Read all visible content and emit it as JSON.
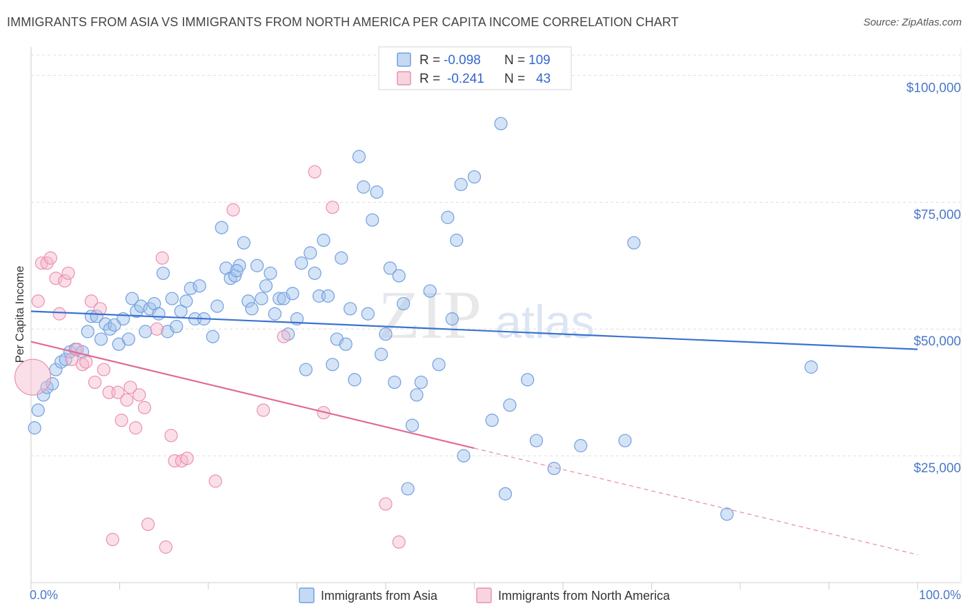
{
  "header": {
    "title": "IMMIGRANTS FROM ASIA VS IMMIGRANTS FROM NORTH AMERICA PER CAPITA INCOME CORRELATION CHART",
    "source": "Source: ZipAtlas.com"
  },
  "watermark": {
    "zip": "ZIP",
    "atlas": "atlas"
  },
  "legend": {
    "r_label": "R =",
    "n_label": "N =",
    "rows": [
      {
        "r": "-0.098",
        "n": "109",
        "color": "#6f9fe0"
      },
      {
        "r": "-0.241",
        "n": "43",
        "color": "#eb8fae"
      }
    ]
  },
  "chart_data": {
    "type": "scatter",
    "title": "IMMIGRANTS FROM ASIA VS IMMIGRANTS FROM NORTH AMERICA PER CAPITA INCOME CORRELATION CHART",
    "xlabel": "",
    "ylabel": "Per Capita Income",
    "xlim": [
      0,
      100
    ],
    "ylim": [
      0,
      104000
    ],
    "x_tick_labels": [
      "0.0%",
      "100.0%"
    ],
    "y_ticks": [
      25000,
      50000,
      75000,
      100000
    ],
    "y_tick_labels": [
      "$25,000",
      "$50,000",
      "$75,000",
      "$100,000"
    ],
    "grid": true,
    "series": [
      {
        "name": "Immigrants from Asia",
        "color": "#6f9fe0",
        "fill": "rgba(160,192,236,0.45)",
        "trend": {
          "x0": 0,
          "y0": 53500,
          "x1": 100,
          "y1": 46000,
          "solid_until": 100
        },
        "points": [
          [
            0.4,
            30500
          ],
          [
            0.8,
            34000
          ],
          [
            1.4,
            37000
          ],
          [
            1.8,
            38500
          ],
          [
            2.4,
            39200
          ],
          [
            2.8,
            42000
          ],
          [
            3.4,
            43500
          ],
          [
            3.9,
            44000
          ],
          [
            4.4,
            45500
          ],
          [
            5.0,
            46000
          ],
          [
            5.8,
            45500
          ],
          [
            6.4,
            49500
          ],
          [
            6.8,
            52500
          ],
          [
            7.4,
            52500
          ],
          [
            7.9,
            48000
          ],
          [
            8.4,
            51000
          ],
          [
            8.9,
            50000
          ],
          [
            9.4,
            50800
          ],
          [
            9.9,
            47000
          ],
          [
            10.4,
            52000
          ],
          [
            11.0,
            48000
          ],
          [
            11.4,
            56000
          ],
          [
            11.9,
            53500
          ],
          [
            12.4,
            54500
          ],
          [
            12.9,
            49500
          ],
          [
            13.4,
            54000
          ],
          [
            13.9,
            55000
          ],
          [
            14.4,
            53000
          ],
          [
            14.9,
            61000
          ],
          [
            15.4,
            49500
          ],
          [
            15.9,
            56000
          ],
          [
            16.4,
            50500
          ],
          [
            16.9,
            53500
          ],
          [
            17.5,
            55500
          ],
          [
            18.0,
            58000
          ],
          [
            18.5,
            52000
          ],
          [
            19.0,
            58500
          ],
          [
            19.5,
            52000
          ],
          [
            20.5,
            48500
          ],
          [
            21.0,
            54500
          ],
          [
            21.5,
            70000
          ],
          [
            22.0,
            62000
          ],
          [
            22.5,
            60000
          ],
          [
            23.0,
            60500
          ],
          [
            23.5,
            62500
          ],
          [
            24.0,
            67000
          ],
          [
            24.5,
            55500
          ],
          [
            24.9,
            54000
          ],
          [
            25.5,
            62500
          ],
          [
            26.0,
            56000
          ],
          [
            26.5,
            58500
          ],
          [
            27.0,
            61000
          ],
          [
            27.5,
            53000
          ],
          [
            28.0,
            56000
          ],
          [
            28.5,
            56000
          ],
          [
            29.0,
            49000
          ],
          [
            29.5,
            57000
          ],
          [
            30.0,
            52000
          ],
          [
            30.5,
            63000
          ],
          [
            31.0,
            42000
          ],
          [
            31.5,
            65000
          ],
          [
            32.0,
            61000
          ],
          [
            32.5,
            56500
          ],
          [
            33.0,
            67500
          ],
          [
            33.5,
            56500
          ],
          [
            34.0,
            43000
          ],
          [
            34.5,
            48000
          ],
          [
            35.0,
            64000
          ],
          [
            35.5,
            47000
          ],
          [
            36.0,
            54000
          ],
          [
            36.5,
            40000
          ],
          [
            37.0,
            84000
          ],
          [
            37.5,
            78000
          ],
          [
            38.0,
            53000
          ],
          [
            38.5,
            71500
          ],
          [
            39.0,
            77000
          ],
          [
            39.5,
            45000
          ],
          [
            40.0,
            49000
          ],
          [
            40.5,
            62000
          ],
          [
            41.0,
            39500
          ],
          [
            41.5,
            60500
          ],
          [
            42.0,
            55000
          ],
          [
            42.5,
            18500
          ],
          [
            43.0,
            31000
          ],
          [
            43.5,
            37000
          ],
          [
            44.0,
            39500
          ],
          [
            45.0,
            57500
          ],
          [
            46.0,
            43000
          ],
          [
            47.0,
            72000
          ],
          [
            47.5,
            52000
          ],
          [
            48.0,
            67500
          ],
          [
            48.5,
            78500
          ],
          [
            48.8,
            25000
          ],
          [
            50.0,
            80000
          ],
          [
            52.0,
            32000
          ],
          [
            53.0,
            90500
          ],
          [
            53.5,
            17500
          ],
          [
            54.0,
            35000
          ],
          [
            56.0,
            40000
          ],
          [
            57.0,
            28000
          ],
          [
            59.0,
            22500
          ],
          [
            62.0,
            27000
          ],
          [
            67.0,
            28000
          ],
          [
            68.0,
            67000
          ],
          [
            78.5,
            13500
          ],
          [
            88.0,
            42500
          ],
          [
            23.2,
            61500
          ]
        ]
      },
      {
        "name": "Immigrants from North America",
        "color": "#eb8fae",
        "fill": "rgba(244,184,205,0.45)",
        "trend": {
          "x0": 0,
          "y0": 47500,
          "x1": 100,
          "y1": 5500,
          "solid_until": 50
        },
        "points": [
          [
            0.2,
            40500
          ],
          [
            0.8,
            55500
          ],
          [
            1.2,
            63000
          ],
          [
            1.8,
            63000
          ],
          [
            2.2,
            64000
          ],
          [
            2.8,
            60000
          ],
          [
            3.2,
            53000
          ],
          [
            3.8,
            59500
          ],
          [
            4.2,
            61000
          ],
          [
            4.6,
            44000
          ],
          [
            5.2,
            46000
          ],
          [
            5.8,
            43000
          ],
          [
            6.2,
            43500
          ],
          [
            6.8,
            55500
          ],
          [
            7.2,
            39500
          ],
          [
            7.8,
            54000
          ],
          [
            8.2,
            42000
          ],
          [
            8.8,
            37500
          ],
          [
            9.2,
            8500
          ],
          [
            9.8,
            37500
          ],
          [
            10.2,
            32000
          ],
          [
            10.8,
            36000
          ],
          [
            11.2,
            38500
          ],
          [
            11.8,
            30500
          ],
          [
            12.2,
            37000
          ],
          [
            12.8,
            34500
          ],
          [
            13.2,
            11500
          ],
          [
            14.2,
            50000
          ],
          [
            14.8,
            64000
          ],
          [
            15.2,
            7000
          ],
          [
            15.8,
            29000
          ],
          [
            16.2,
            24000
          ],
          [
            17.0,
            24000
          ],
          [
            17.6,
            24500
          ],
          [
            20.8,
            20000
          ],
          [
            22.8,
            73500
          ],
          [
            26.2,
            34000
          ],
          [
            28.5,
            48500
          ],
          [
            32.0,
            81000
          ],
          [
            33.0,
            33500
          ],
          [
            34.0,
            74000
          ],
          [
            40.0,
            15500
          ],
          [
            41.5,
            8000
          ]
        ]
      }
    ]
  },
  "bottom_legend": [
    {
      "label": "Immigrants from Asia",
      "color": "#6f9fe0"
    },
    {
      "label": "Immigrants from North America",
      "color": "#eb8fae"
    }
  ]
}
